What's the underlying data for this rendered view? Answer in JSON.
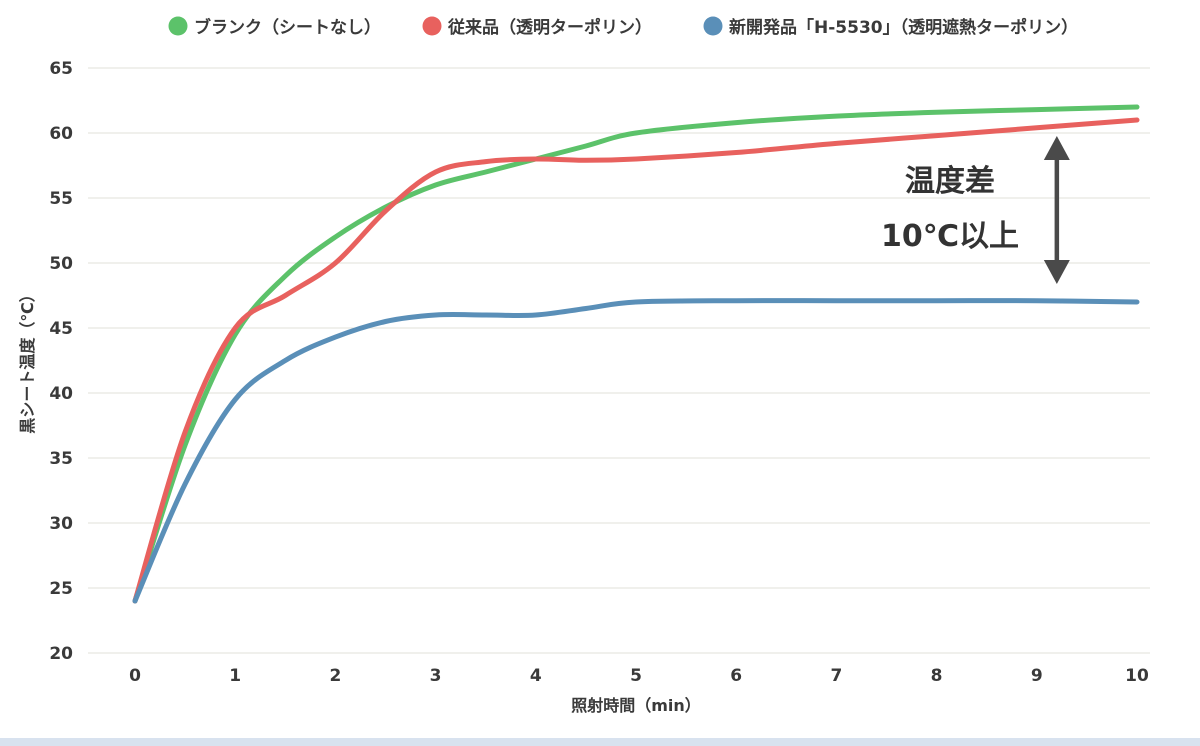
{
  "chart_data": {
    "type": "line",
    "title": "",
    "xlabel": "照射時間（min）",
    "ylabel": "黒シート温度（℃）",
    "x": [
      0,
      0.5,
      1,
      1.5,
      2,
      2.5,
      3,
      3.5,
      4,
      4.5,
      5,
      6,
      7,
      8,
      9,
      10
    ],
    "xticks": [
      "0",
      "1",
      "2",
      "3",
      "4",
      "5",
      "6",
      "7",
      "8",
      "9",
      "10"
    ],
    "yticks": [
      "20",
      "25",
      "30",
      "35",
      "40",
      "45",
      "50",
      "55",
      "60",
      "65"
    ],
    "xlim": [
      0,
      10
    ],
    "ylim": [
      20,
      65
    ],
    "grid": true,
    "legend_position": "top",
    "series": [
      {
        "name": "ブランク（シートなし）",
        "color": "#5cc26a",
        "values": [
          24,
          36,
          44.5,
          49,
          52,
          54.3,
          56,
          57,
          58,
          59,
          60,
          60.8,
          61.3,
          61.6,
          61.8,
          62
        ]
      },
      {
        "name": "従来品（透明ターポリン）",
        "color": "#e8615e",
        "values": [
          24,
          37,
          45,
          47.5,
          50,
          54,
          57,
          57.8,
          58,
          57.9,
          58,
          58.5,
          59.2,
          59.8,
          60.4,
          61
        ]
      },
      {
        "name": "新開発品「H-5530」（透明遮熱ターポリン）",
        "color": "#5a8fb8",
        "values": [
          24,
          33,
          39.5,
          42.5,
          44.3,
          45.5,
          46,
          46,
          46,
          46.5,
          47,
          47.1,
          47.1,
          47.1,
          47.1,
          47
        ]
      }
    ],
    "annotations": [
      {
        "text_line1": "温度差",
        "text_line2": "10℃以上",
        "arrow_x": 9.2,
        "arrow_from": 61,
        "arrow_to": 47
      }
    ]
  }
}
